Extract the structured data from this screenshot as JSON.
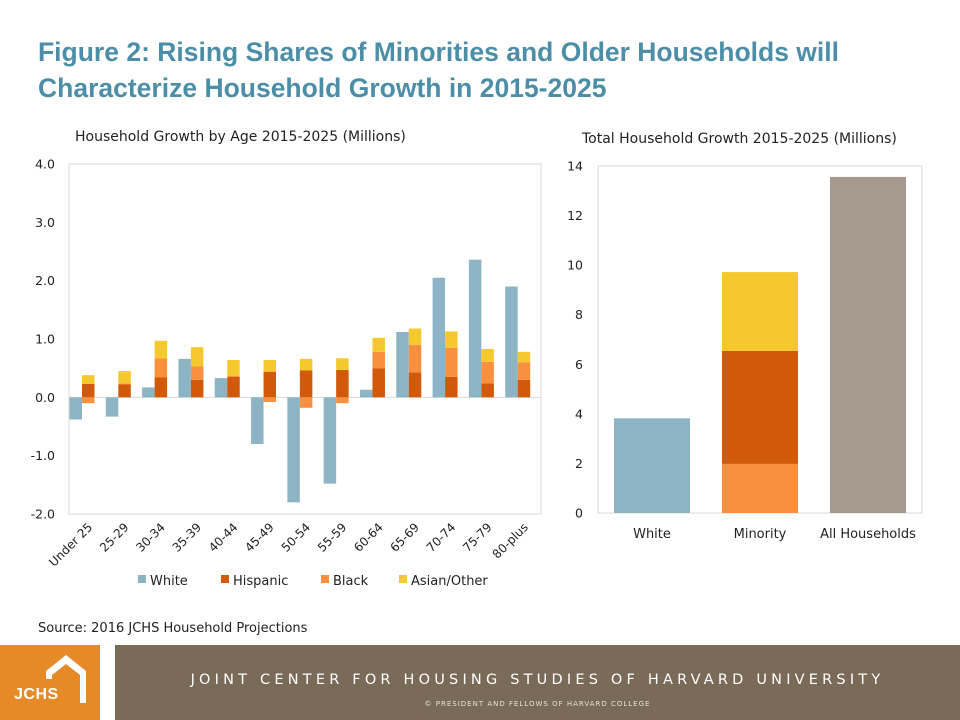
{
  "title": "Figure 2: Rising Shares of Minorities and Older Households will Characterize Household Growth in 2015-2025",
  "source": "Source: 2016 JCHS Household Projections",
  "footer": {
    "logo": "JCHS",
    "banner": "JOINT CENTER FOR HOUSING STUDIES OF HARVARD UNIVERSITY",
    "copyright": "© PRESIDENT AND FELLOWS OF HARVARD COLLEGE"
  },
  "colors": {
    "title": "#4c8ea8",
    "White": "#8db4c5",
    "Hispanic": "#d05a0a",
    "Black": "#f89040",
    "Asian/Other": "#f5c92e",
    "All Households": "#a69a8e",
    "logo": "#e68a27",
    "banner": "#7a6a58"
  },
  "chart_data": [
    {
      "type": "bar",
      "title": "Household Growth by Age 2015-2025 (Millions)",
      "categories": [
        "Under 25",
        "25-29",
        "30-34",
        "35-39",
        "40-44",
        "45-49",
        "50-54",
        "55-59",
        "60-64",
        "65-69",
        "70-74",
        "75-79",
        "80-plus"
      ],
      "ylim": [
        -2.0,
        4.0
      ],
      "yticks": [
        "4.0",
        "3.0",
        "2.0",
        "1.0",
        "0.0",
        "-1.0",
        "-2.0"
      ],
      "grid": false,
      "legend": "bottom",
      "series": [
        {
          "name": "White",
          "values": [
            -0.38,
            -0.33,
            0.17,
            0.66,
            0.33,
            -0.8,
            -1.8,
            -1.48,
            0.13,
            1.12,
            2.05,
            2.36,
            1.9
          ]
        },
        {
          "name": "Hispanic",
          "values": [
            0.23,
            0.22,
            0.34,
            0.3,
            0.35,
            0.44,
            0.46,
            0.47,
            0.5,
            0.43,
            0.35,
            0.24,
            0.3
          ]
        },
        {
          "name": "Black",
          "values": [
            -0.1,
            0.02,
            0.33,
            0.23,
            0.02,
            -0.08,
            -0.18,
            -0.1,
            0.28,
            0.47,
            0.5,
            0.37,
            0.3
          ]
        },
        {
          "name": "Asian/Other",
          "values": [
            0.15,
            0.21,
            0.3,
            0.33,
            0.27,
            0.2,
            0.2,
            0.2,
            0.24,
            0.28,
            0.28,
            0.22,
            0.18
          ]
        }
      ]
    },
    {
      "type": "bar",
      "title": "Total Household Growth 2015-2025 (Millions)",
      "categories": [
        "White",
        "Minority",
        "All Households"
      ],
      "ylim": [
        0,
        14
      ],
      "yticks": [
        "14",
        "12",
        "10",
        "8",
        "6",
        "4",
        "2",
        "0"
      ],
      "grid": false,
      "bars": [
        {
          "category": "White",
          "segments": [
            {
              "name": "White",
              "value": 3.82
            }
          ]
        },
        {
          "category": "Minority",
          "segments": [
            {
              "name": "Black",
              "value": 1.98
            },
            {
              "name": "Hispanic",
              "value": 4.56
            },
            {
              "name": "Asian/Other",
              "value": 3.18
            }
          ]
        },
        {
          "category": "All Households",
          "segments": [
            {
              "name": "All Households",
              "value": 13.56
            }
          ]
        }
      ]
    }
  ]
}
